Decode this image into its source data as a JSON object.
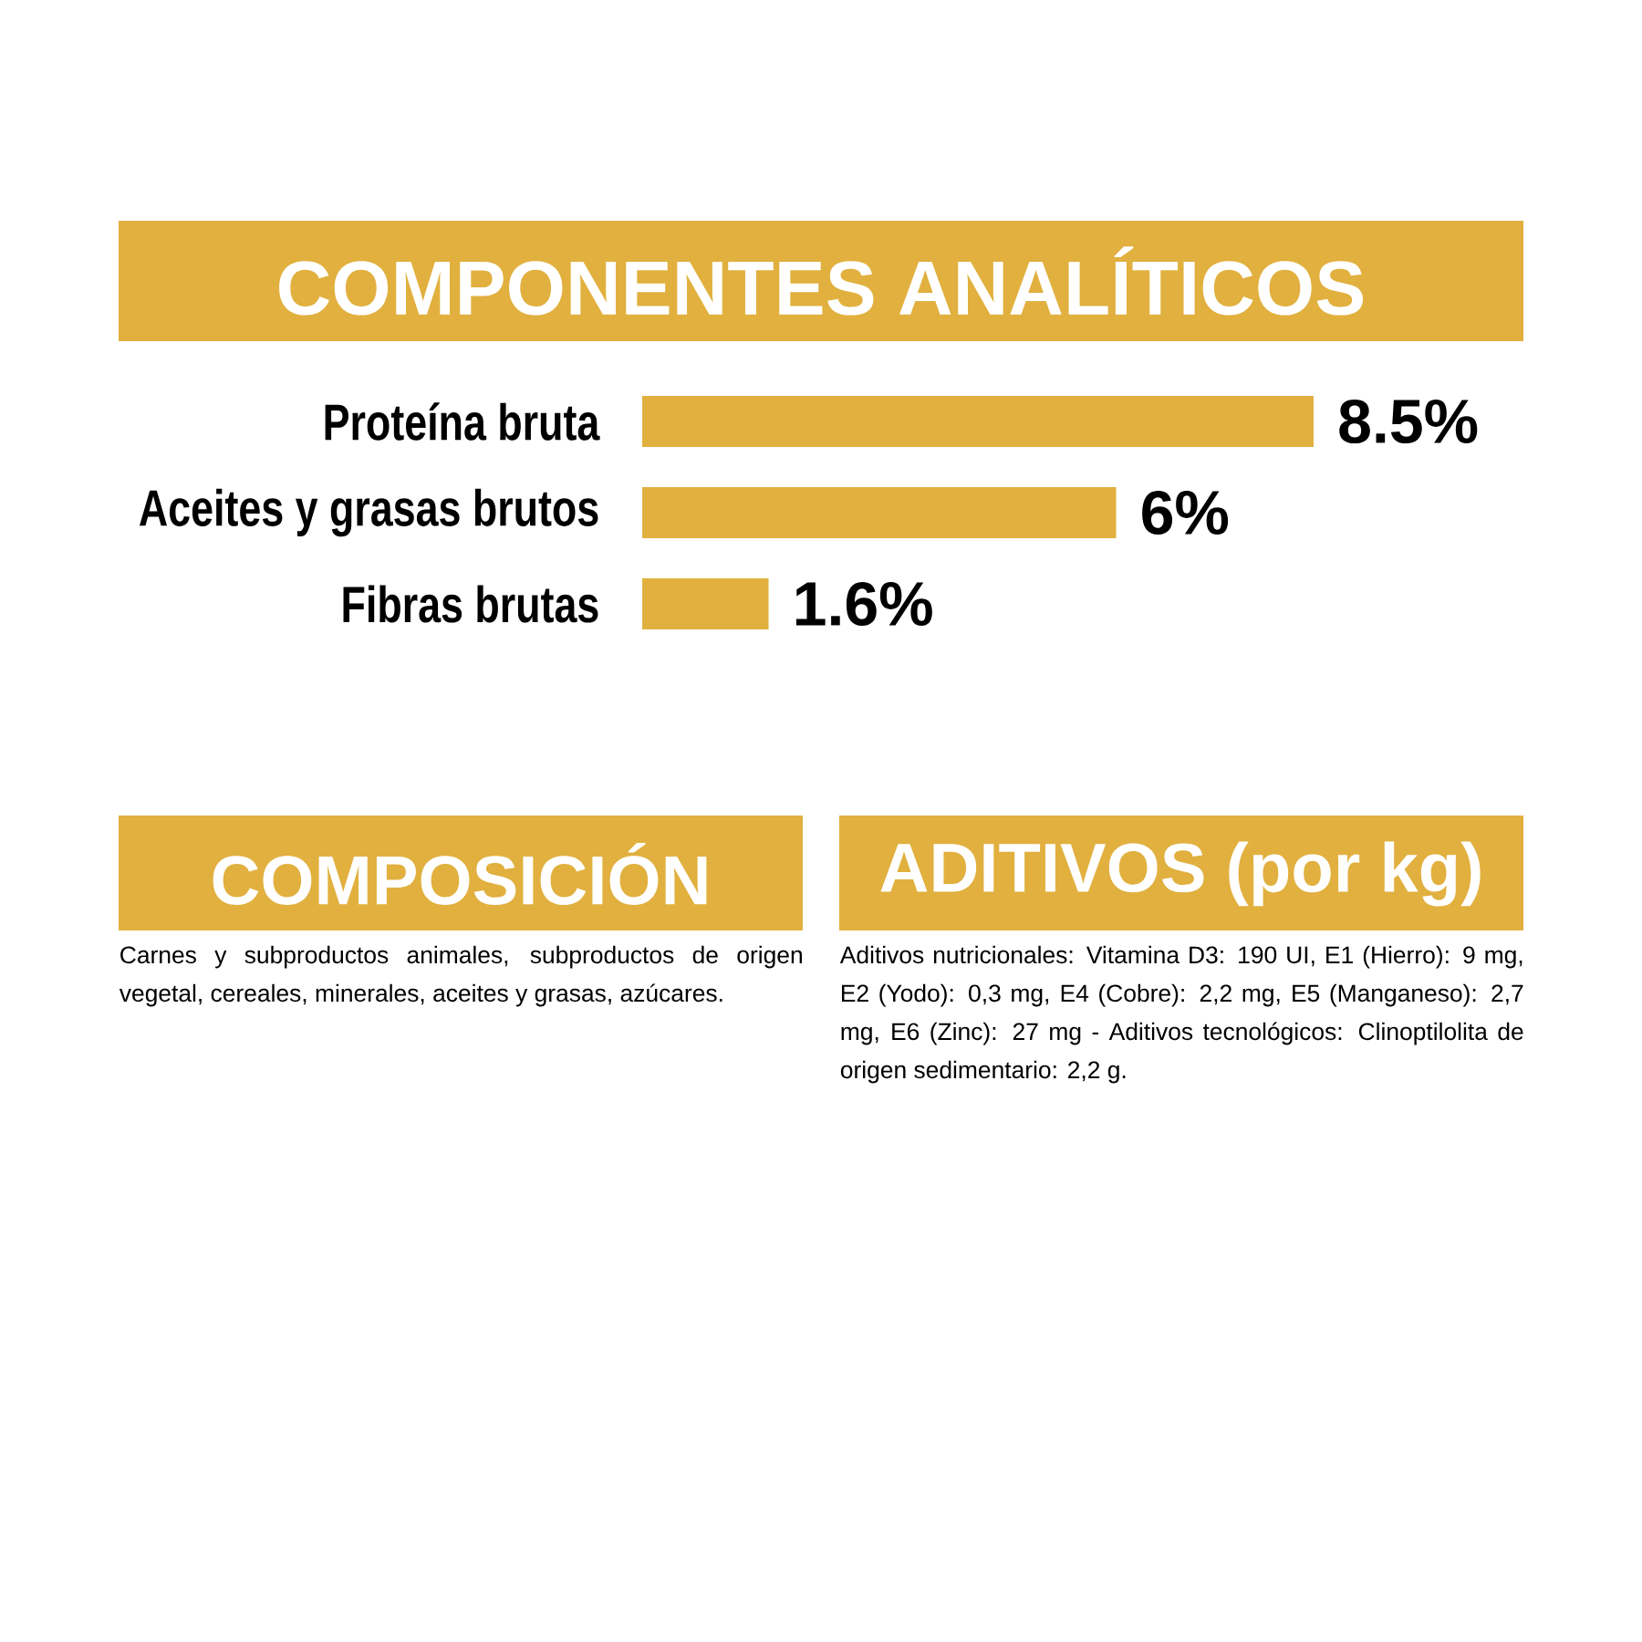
{
  "chart_data": {
    "type": "bar",
    "orientation": "horizontal",
    "title": "COMPONENTES ANALÍTICOS",
    "categories": [
      "Proteína bruta",
      "Aceites y grasas brutos",
      "Fibras brutas"
    ],
    "values": [
      8.5,
      6,
      1.6
    ],
    "value_labels": [
      "8.5%",
      "6%",
      "1.6%"
    ],
    "color": "#e1b03e",
    "annotations": [
      "COMPOSICIÓN",
      "Carnes y subproductos animales, subproductos de origen vegetal, cereales, minerales, aceites y grasas, azúcares.",
      "ADITIVOS (por kg)",
      "Aditivos nutricionales: Vitamina D3: 190 UI, E1 (Hierro): 9 mg, E2 (Yodo): 0,3 mg, E4 (Cobre): 2,2 mg, E5 (Manganeso): 2,7 mg, E6 (Zinc): 27 mg - Aditivos tecnológicos: Clinoptilolita de origen sedimentario: 2,2 g."
    ]
  }
}
